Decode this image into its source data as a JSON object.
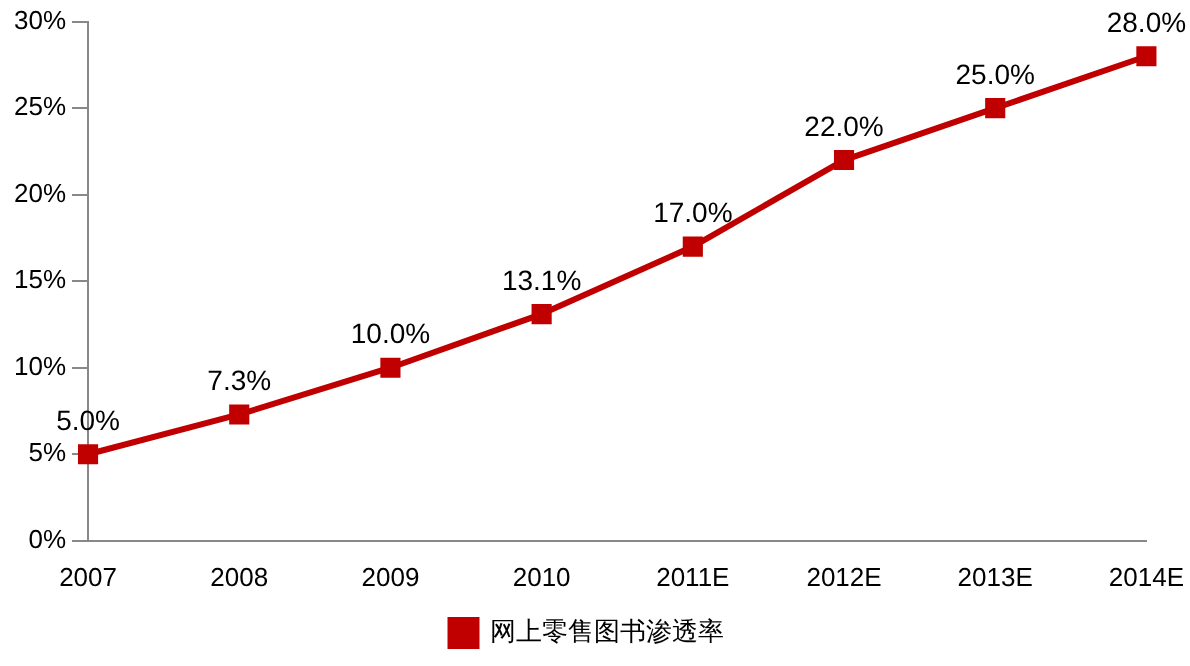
{
  "chart_data": {
    "type": "line",
    "categories": [
      "2007",
      "2008",
      "2009",
      "2010",
      "2011E",
      "2012E",
      "2013E",
      "2014E"
    ],
    "series": [
      {
        "name": "网上零售图书渗透率",
        "color": "#c00000",
        "values": [
          5.0,
          7.3,
          10.0,
          13.1,
          17.0,
          22.0,
          25.0,
          28.0
        ],
        "value_labels": [
          "5.0%",
          "7.3%",
          "10.0%",
          "13.1%",
          "17.0%",
          "22.0%",
          "25.0%",
          "28.0%"
        ]
      }
    ],
    "ylim": [
      0,
      30
    ],
    "yticks": [
      {
        "value": 0,
        "label": "0%"
      },
      {
        "value": 5,
        "label": "5%"
      },
      {
        "value": 10,
        "label": "10%"
      },
      {
        "value": 15,
        "label": "15%"
      },
      {
        "value": 20,
        "label": "20%"
      },
      {
        "value": 25,
        "label": "25%"
      },
      {
        "value": 30,
        "label": "30%"
      }
    ],
    "grid": false,
    "legend": "bottom",
    "marker": "square",
    "line_style": "solid"
  }
}
